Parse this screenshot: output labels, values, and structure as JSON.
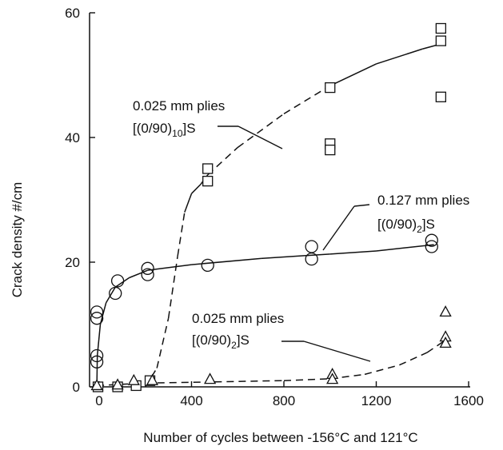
{
  "chart_data": {
    "type": "scatter",
    "xlabel": "Number of cycles between -156°C and 121°C",
    "ylabel": "Crack density #/cm",
    "xlim": [
      -50,
      1600
    ],
    "ylim": [
      0,
      60
    ],
    "xticks": [
      0,
      400,
      800,
      1200,
      1600
    ],
    "yticks": [
      0,
      20,
      40,
      60
    ],
    "grid": false,
    "legend": "none",
    "series": [
      {
        "name": "0.025 mm plies [(0/90)10]S",
        "marker": "square",
        "points": [
          [
            -5,
            0
          ],
          [
            80,
            0
          ],
          [
            160,
            0.2
          ],
          [
            220,
            1
          ],
          [
            470,
            35
          ],
          [
            470,
            33
          ],
          [
            1000,
            48
          ],
          [
            1000,
            39
          ],
          [
            1000,
            38
          ],
          [
            1480,
            57.5
          ],
          [
            1480,
            55.5
          ],
          [
            1480,
            46.5
          ]
        ],
        "fit": [
          [
            200,
            0
          ],
          [
            250,
            3
          ],
          [
            300,
            11
          ],
          [
            340,
            21
          ],
          [
            370,
            28
          ],
          [
            400,
            31
          ],
          [
            440,
            32.5
          ],
          [
            470,
            34
          ],
          [
            600,
            38.4
          ],
          [
            800,
            43.8
          ],
          [
            1000,
            48.3
          ],
          [
            1200,
            51.8
          ],
          [
            1400,
            54.2
          ],
          [
            1480,
            55
          ]
        ],
        "fit_styles": [
          "dashed",
          "solid",
          "dashed",
          "solid"
        ]
      },
      {
        "name": "0.127 mm plies [(0/90)2]S",
        "marker": "circle",
        "points": [
          [
            -10,
            4
          ],
          [
            -10,
            5
          ],
          [
            -10,
            11
          ],
          [
            -10,
            12
          ],
          [
            70,
            15
          ],
          [
            80,
            17
          ],
          [
            210,
            18
          ],
          [
            210,
            19
          ],
          [
            470,
            19.5
          ],
          [
            920,
            20.5
          ],
          [
            920,
            22.5
          ],
          [
            1440,
            22.5
          ],
          [
            1440,
            23.5
          ]
        ],
        "fit": [
          [
            -10,
            0
          ],
          [
            -8,
            5
          ],
          [
            5,
            10
          ],
          [
            30,
            13.5
          ],
          [
            70,
            16
          ],
          [
            130,
            17.5
          ],
          [
            210,
            18.7
          ],
          [
            400,
            19.6
          ],
          [
            700,
            20.6
          ],
          [
            1000,
            21.3
          ],
          [
            1200,
            21.8
          ],
          [
            1450,
            22.8
          ]
        ],
        "fit_styles": [
          "solid"
        ]
      },
      {
        "name": "0.025 mm plies [(0/90)2]S",
        "marker": "triangle",
        "points": [
          [
            -10,
            0.2
          ],
          [
            80,
            0.3
          ],
          [
            150,
            1
          ],
          [
            230,
            1
          ],
          [
            480,
            1.2
          ],
          [
            1010,
            2
          ],
          [
            1010,
            1.2
          ],
          [
            1500,
            12
          ],
          [
            1500,
            8
          ],
          [
            1500,
            7
          ]
        ],
        "fit": [
          [
            -10,
            0.2
          ],
          [
            200,
            0.6
          ],
          [
            500,
            0.8
          ],
          [
            800,
            1
          ],
          [
            1000,
            1.3
          ],
          [
            1150,
            2
          ],
          [
            1300,
            3.5
          ],
          [
            1420,
            5.5
          ],
          [
            1500,
            7.5
          ]
        ],
        "fit_styles": [
          "dashed"
        ]
      }
    ],
    "annotations": [
      {
        "line1": "0.025 mm plies",
        "line2_pre": "[(0/90)",
        "line2_sub": "10",
        "line2_post": "]S"
      },
      {
        "line1": "0.127 mm plies",
        "line2_pre": "[(0/90)",
        "line2_sub": "2",
        "line2_post": "]S"
      },
      {
        "line1": "0.025 mm plies",
        "line2_pre": "[(0/90)",
        "line2_sub": "2",
        "line2_post": "]S"
      }
    ]
  }
}
